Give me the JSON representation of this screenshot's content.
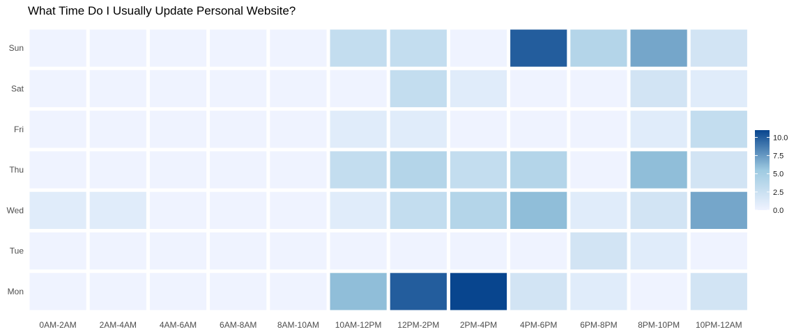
{
  "chart_data": {
    "type": "heatmap",
    "title": "What Time Do I Usually Update Personal Website?",
    "xlabel": "",
    "ylabel": "",
    "x_categories": [
      "0AM-2AM",
      "2AM-4AM",
      "4AM-6AM",
      "6AM-8AM",
      "8AM-10AM",
      "10AM-12PM",
      "12PM-2PM",
      "2PM-4PM",
      "4PM-6PM",
      "6PM-8PM",
      "8PM-10PM",
      "10PM-12AM"
    ],
    "y_categories": [
      "Sun",
      "Sat",
      "Fri",
      "Thu",
      "Wed",
      "Tue",
      "Mon"
    ],
    "values": [
      [
        0,
        0,
        0,
        0,
        0,
        3,
        3,
        0,
        10,
        4,
        7,
        2
      ],
      [
        0,
        0,
        0,
        0,
        0,
        0,
        3,
        1,
        0,
        0,
        2,
        1
      ],
      [
        0,
        0,
        0,
        0,
        0,
        1,
        1,
        0,
        0,
        0,
        1,
        3
      ],
      [
        0,
        0,
        0,
        0,
        0,
        3,
        4,
        3,
        4,
        0,
        6,
        2
      ],
      [
        1,
        1,
        0,
        0,
        0,
        1,
        3,
        4,
        6,
        1,
        2,
        7
      ],
      [
        0,
        0,
        0,
        0,
        0,
        0,
        0,
        0,
        0,
        2,
        1,
        0
      ],
      [
        0,
        0,
        0,
        0,
        0,
        6,
        10,
        11,
        2,
        1,
        0,
        2
      ]
    ],
    "legend": {
      "position": "right",
      "ticks": [
        "10.0",
        "7.5",
        "5.0",
        "2.5",
        "0.0"
      ],
      "min": 0,
      "max": 11,
      "low_color": "#eff3ff",
      "high_color": "#08458e"
    },
    "grid": false
  }
}
